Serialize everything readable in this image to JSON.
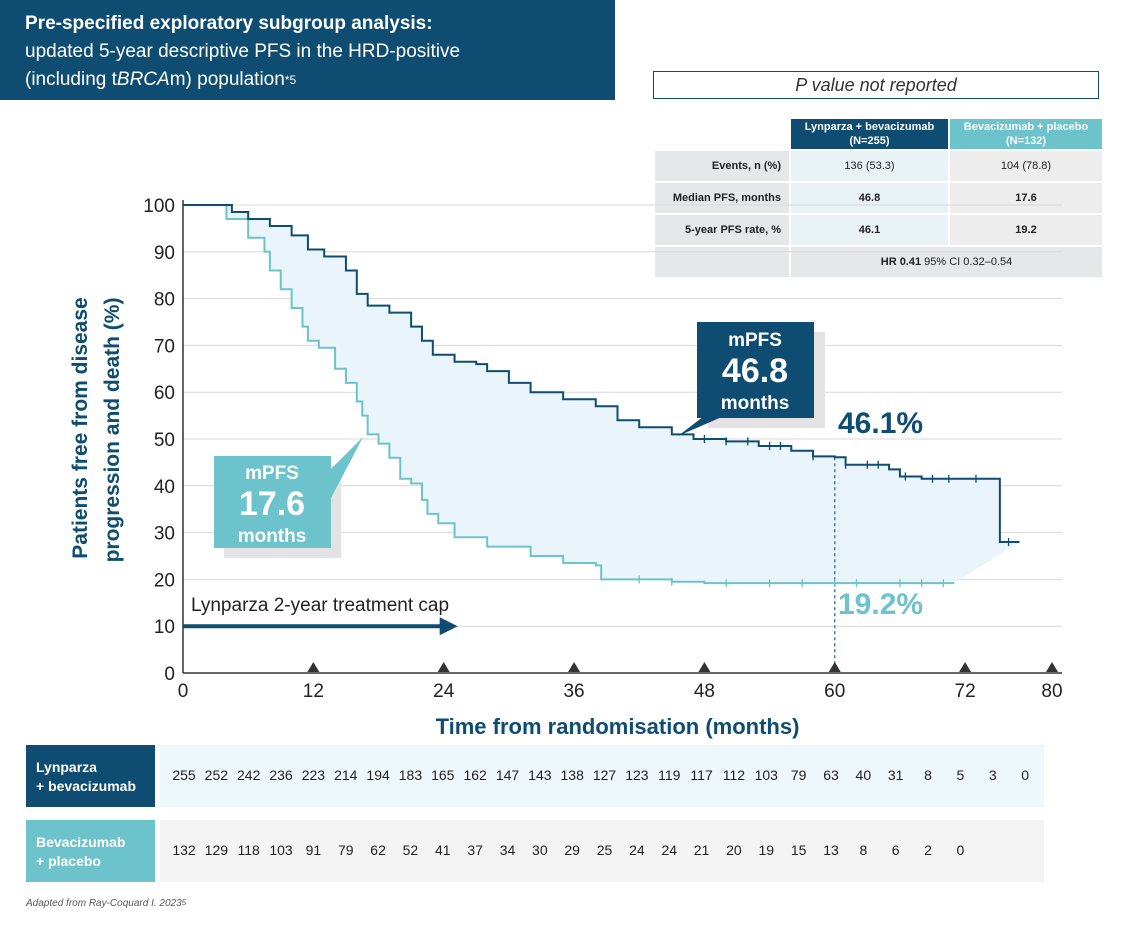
{
  "header": {
    "line1": "Pre-specified exploratory subgroup analysis:",
    "line2": "updated 5-year descriptive PFS in the HRD-positive",
    "line3_pre": "(including t",
    "line3_italic": "BRCA",
    "line3_post": "m) population",
    "line3_sup": "*5"
  },
  "p_value_note": "P value not reported",
  "stats_table": {
    "columns": [
      "Lynparza + bevacizumab",
      "(N=255)",
      "Bevacizumab + placebo",
      "(N=132)"
    ],
    "rows": [
      {
        "label": "Events, n (%)",
        "v1": "136 (53.3)",
        "v2": "104 (78.8)"
      },
      {
        "label": "Median PFS, months",
        "v1": "46.8",
        "v2": "17.6"
      },
      {
        "label": "5-year PFS rate, %",
        "v1": "46.1",
        "v2": "19.2"
      }
    ],
    "hr_bold": "HR 0.41",
    "hr_rest": " 95% CI 0.32–0.54"
  },
  "colors": {
    "lynparza": "#0e4d71",
    "placebo": "#6cc3cb",
    "fill": "#e9f5fb"
  },
  "chart_data": {
    "type": "line",
    "subtype": "kaplan-meier",
    "xlabel": "Time from randomisation (months)",
    "ylabel_line1": "Patients free from disease",
    "ylabel_line2": "progression and death (%)",
    "xlim": [
      0,
      80
    ],
    "ylim": [
      0,
      100
    ],
    "x_ticks": [
      0,
      12,
      24,
      36,
      48,
      60,
      72,
      80
    ],
    "y_ticks": [
      0,
      10,
      20,
      30,
      40,
      50,
      60,
      70,
      80,
      90,
      100
    ],
    "grid": true,
    "series": [
      {
        "name": "Lynparza + bevacizumab",
        "points": [
          [
            0,
            100
          ],
          [
            3,
            100
          ],
          [
            4.5,
            98.5
          ],
          [
            6,
            97
          ],
          [
            8,
            95.5
          ],
          [
            10,
            93.5
          ],
          [
            11.5,
            90.5
          ],
          [
            13,
            89
          ],
          [
            15,
            86
          ],
          [
            16,
            81
          ],
          [
            17,
            78.5
          ],
          [
            19,
            77
          ],
          [
            21,
            74
          ],
          [
            22,
            71
          ],
          [
            23,
            68
          ],
          [
            25,
            66.5
          ],
          [
            27,
            66
          ],
          [
            28,
            64.5
          ],
          [
            30,
            62
          ],
          [
            32,
            60
          ],
          [
            35,
            58.5
          ],
          [
            38,
            57
          ],
          [
            40,
            54
          ],
          [
            42,
            52.5
          ],
          [
            45,
            51
          ],
          [
            47,
            50
          ],
          [
            50,
            49.5
          ],
          [
            53,
            48.5
          ],
          [
            56,
            47.5
          ],
          [
            58,
            46.3
          ],
          [
            60,
            46.1
          ],
          [
            61,
            44.5
          ],
          [
            65,
            43.5
          ],
          [
            66,
            42
          ],
          [
            68,
            41.5
          ],
          [
            75,
            41.5
          ],
          [
            75.2,
            28
          ],
          [
            77,
            28
          ]
        ]
      },
      {
        "name": "Bevacizumab + placebo",
        "points": [
          [
            0,
            100
          ],
          [
            3,
            100
          ],
          [
            4,
            97
          ],
          [
            6,
            93
          ],
          [
            7.5,
            90
          ],
          [
            8,
            86
          ],
          [
            9,
            82
          ],
          [
            10,
            78
          ],
          [
            11,
            74
          ],
          [
            11.5,
            71
          ],
          [
            12.5,
            69.5
          ],
          [
            14,
            65
          ],
          [
            15,
            62
          ],
          [
            16,
            58
          ],
          [
            16.5,
            55
          ],
          [
            17,
            51
          ],
          [
            18,
            49
          ],
          [
            19,
            46
          ],
          [
            20,
            41.5
          ],
          [
            21,
            40.5
          ],
          [
            22,
            37
          ],
          [
            22.5,
            34
          ],
          [
            23.5,
            32
          ],
          [
            25,
            29
          ],
          [
            28,
            27
          ],
          [
            32,
            25
          ],
          [
            35,
            23.5
          ],
          [
            38,
            23
          ],
          [
            38.5,
            20
          ],
          [
            45,
            19.5
          ],
          [
            48,
            19.2
          ],
          [
            71,
            19.2
          ]
        ]
      }
    ],
    "annotations": {
      "lynparza_mpfs": [
        "mPFS",
        "46.8",
        "months"
      ],
      "placebo_mpfs": [
        "mPFS",
        "17.6",
        "months"
      ],
      "lynparza_5yr": "46.1%",
      "placebo_5yr": "19.2%",
      "cap_label": "Lynparza 2-year treatment cap",
      "cap_end_month": 24
    },
    "triangle_markers": [
      12,
      24,
      36,
      48,
      60,
      72,
      80
    ],
    "vertical_reference_month": 60
  },
  "numbers_at_risk": {
    "lynparza": {
      "label_line1": "Lynparza",
      "label_line2": "+ bevacizumab",
      "values": [
        "255",
        "252",
        "242",
        "236",
        "223",
        "214",
        "194",
        "183",
        "165",
        "162",
        "147",
        "143",
        "138",
        "127",
        "123",
        "119",
        "117",
        "112",
        "103",
        "79",
        "63",
        "40",
        "31",
        "8",
        "5",
        "3",
        "0"
      ]
    },
    "placebo": {
      "label_line1": "Bevacizumab",
      "label_line2": "+ placebo",
      "values": [
        "132",
        "129",
        "118",
        "103",
        "91",
        "79",
        "62",
        "52",
        "41",
        "37",
        "34",
        "30",
        "29",
        "25",
        "24",
        "24",
        "21",
        "20",
        "19",
        "15",
        "13",
        "8",
        "6",
        "2",
        "0"
      ]
    }
  },
  "footnote": "Adapted from Ray-Coquard I. 2023",
  "footnote_sup": "5"
}
